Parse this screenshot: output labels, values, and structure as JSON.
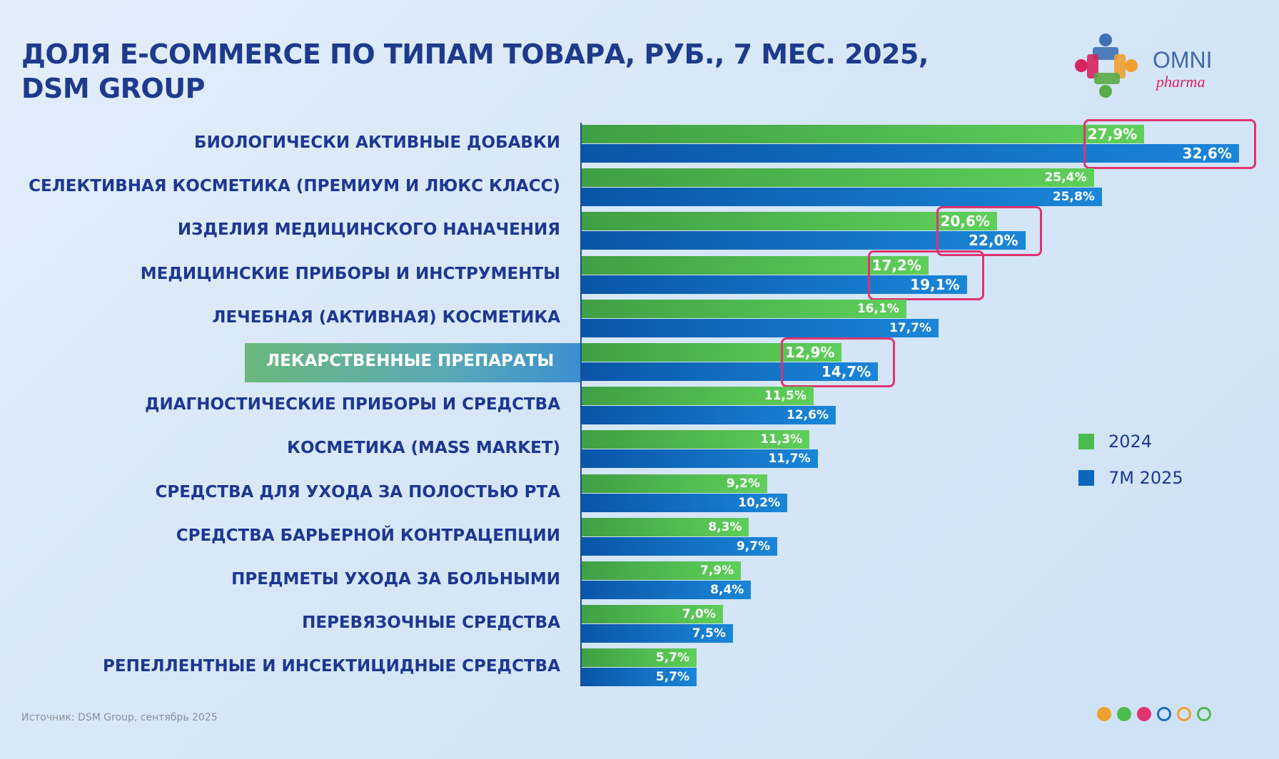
{
  "title_line1": "ДОЛЯ E-COMMERCE ПО ТИПАМ ТОВАРА, РУБ., 7 МЕС. 2025,",
  "title_line2": "DSM GROUP",
  "logo": {
    "text": "OMNI",
    "subtext": "pharma"
  },
  "source": "Источник: DSM Group, сентябрь 2025",
  "colors": {
    "2024": "#4cbb4f",
    "7M 2025": "#0b67bd",
    "highlight": "#e0336f",
    "text": "#1d3791"
  },
  "decorative_dots": [
    "#f0a030",
    "#4cbb4f",
    "#e0336f",
    "outline-#1a6fc0",
    "outline-#f0a030",
    "outline-#4cbb4f"
  ],
  "chart_data": {
    "type": "bar",
    "orientation": "horizontal",
    "unit": "%",
    "categories": [
      "БИОЛОГИЧЕСКИ АКТИВНЫЕ ДОБАВКИ",
      "СЕЛЕКТИВНАЯ КОСМЕТИКА (ПРЕМИУМ И ЛЮКС КЛАСС)",
      "ИЗДЕЛИЯ МЕДИЦИНСКОГО НАНАЧЕНИЯ",
      "МЕДИЦИНСКИЕ ПРИБОРЫ И ИНСТРУМЕНТЫ",
      "ЛЕЧЕБНАЯ (АКТИВНАЯ) КОСМЕТИКА",
      "ЛЕКАРСТВЕННЫЕ ПРЕПАРАТЫ",
      "ДИАГНОСТИЧЕСКИЕ ПРИБОРЫ И СРЕДСТВА",
      "КОСМЕТИКА (MASS MARKET)",
      "СРЕДСТВА ДЛЯ УХОДА ЗА ПОЛОСТЬЮ РТА",
      "СРЕДСТВА БАРЬЕРНОЙ КОНТРАЦЕПЦИИ",
      "ПРЕДМЕТЫ УХОДА ЗА БОЛЬНЫМИ",
      "ПЕРЕВЯЗОЧНЫЕ СРЕДСТВА",
      "РЕПЕЛЛЕНТНЫЕ И ИНСЕКТИЦИДНЫЕ СРЕДСТВА"
    ],
    "series": [
      {
        "name": "2024",
        "values": [
          27.9,
          25.4,
          20.6,
          17.2,
          16.1,
          12.9,
          11.5,
          11.3,
          9.2,
          8.3,
          7.9,
          7.0,
          5.7
        ],
        "labels": [
          "27,9%",
          "25,4%",
          "20,6%",
          "17,2%",
          "16,1%",
          "12,9%",
          "11,5%",
          "11,3%",
          "9,2%",
          "8,3%",
          "7,9%",
          "7,0%",
          "5,7%"
        ]
      },
      {
        "name": "7M 2025",
        "values": [
          32.6,
          25.8,
          22.0,
          19.1,
          17.7,
          14.7,
          12.6,
          11.7,
          10.2,
          9.7,
          8.4,
          7.5,
          5.7
        ],
        "labels": [
          "32,6%",
          "25,8%",
          "22,0%",
          "19,1%",
          "17,7%",
          "14,7%",
          "12,6%",
          "11,7%",
          "10,2%",
          "9,7%",
          "8,4%",
          "7,5%",
          "5,7%"
        ]
      }
    ],
    "highlighted_category": "ЛЕКАРСТВЕННЫЕ ПРЕПАРАТЫ",
    "circled_categories": [
      "БИОЛОГИЧЕСКИ АКТИВНЫЕ ДОБАВКИ",
      "ИЗДЕЛИЯ МЕДИЦИНСКОГО НАНАЧЕНИЯ",
      "МЕДИЦИНСКИЕ ПРИБОРЫ И ИНСТРУМЕНТЫ",
      "ЛЕКАРСТВЕННЫЕ ПРЕПАРАТЫ"
    ],
    "legend": [
      "2024",
      "7M 2025"
    ],
    "legend_position": "right",
    "xlim": [
      0,
      33
    ],
    "grid": false
  }
}
